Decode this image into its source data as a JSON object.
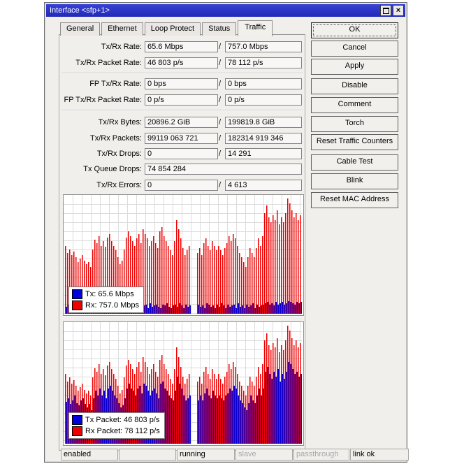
{
  "window": {
    "title": "Interface <sfp+1>"
  },
  "icons": {
    "maximize": "square-outline",
    "close": "x-mark",
    "close_glyph": "×"
  },
  "ui": {
    "slash": "/"
  },
  "tabs": [
    {
      "label": "General",
      "active": false
    },
    {
      "label": "Ethernet",
      "active": false
    },
    {
      "label": "Loop Protect",
      "active": false
    },
    {
      "label": "Status",
      "active": false
    },
    {
      "label": "Traffic",
      "active": true
    }
  ],
  "fields": [
    {
      "label": "Tx/Rx Rate:",
      "tx": "65.6 Mbps",
      "rx": "757.0 Mbps"
    },
    {
      "label": "Tx/Rx Packet Rate:",
      "tx": "46 803 p/s",
      "rx": "78 112 p/s"
    },
    {
      "label": "FP Tx/Rx Rate:",
      "tx": "0 bps",
      "rx": "0 bps"
    },
    {
      "label": "FP Tx/Rx Packet Rate:",
      "tx": "0 p/s",
      "rx": "0 p/s"
    },
    {
      "label": "Tx/Rx Bytes:",
      "tx": "20896.2 GiB",
      "rx": "199819.8 GiB"
    },
    {
      "label": "Tx/Rx Packets:",
      "tx": "99119 063 721",
      "rx": "182314 919 346"
    },
    {
      "label": "Tx/Rx Drops:",
      "tx": "0",
      "rx": "14 291"
    },
    {
      "label": "Tx Queue Drops:",
      "tx": "74 854 284",
      "rx": null
    },
    {
      "label": "Tx/Rx Errors:",
      "tx": "0",
      "rx": "4 613"
    }
  ],
  "buttons": [
    {
      "id": "ok",
      "label": "OK"
    },
    {
      "id": "cancel",
      "label": "Cancel"
    },
    {
      "id": "apply",
      "label": "Apply"
    },
    {
      "id": "disable",
      "label": "Disable"
    },
    {
      "id": "comment",
      "label": "Comment"
    },
    {
      "id": "torch",
      "label": "Torch"
    },
    {
      "id": "reset-traffic-counters",
      "label": "Reset Traffic Counters"
    },
    {
      "id": "cable-test",
      "label": "Cable Test"
    },
    {
      "id": "blink",
      "label": "Blink"
    },
    {
      "id": "reset-mac-address",
      "label": "Reset MAC Address"
    }
  ],
  "statusbar": [
    {
      "text": "enabled",
      "muted": false
    },
    {
      "text": "",
      "muted": false
    },
    {
      "text": "running",
      "muted": false
    },
    {
      "text": "slave",
      "muted": true
    },
    {
      "text": "passthrough",
      "muted": true
    },
    {
      "text": "link ok",
      "muted": false
    }
  ],
  "colors": {
    "tx_blue": "#0000dd",
    "rx_red": "#ee0000",
    "grid": "#dcdcdc",
    "titlebar_blue": "#2b34c8"
  },
  "chart_data": [
    {
      "type": "bar",
      "title": "Traffic rate graph (Tx/Rx Mbps)",
      "ylabel": "",
      "xlabel": "",
      "grid": true,
      "legend_position": "bottom-left",
      "note": "values are bar heights in percent of plot height; null = data gap",
      "legend": [
        {
          "series": "Tx",
          "color": "#0000dd",
          "current": "65.6 Mbps",
          "display": "Tx:  65.6 Mbps"
        },
        {
          "series": "Rx",
          "color": "#ee0000",
          "current": "757.0 Mbps",
          "display": "Rx:  757.0 Mbps"
        }
      ],
      "series": [
        {
          "name": "Rx",
          "color": "#ee0000",
          "values": [
            58,
            52,
            55,
            50,
            53,
            48,
            44,
            47,
            50,
            45,
            42,
            44,
            40,
            55,
            63,
            60,
            66,
            58,
            62,
            57,
            65,
            68,
            62,
            58,
            54,
            48,
            42,
            45,
            55,
            65,
            70,
            66,
            62,
            58,
            64,
            68,
            60,
            72,
            68,
            64,
            58,
            62,
            66,
            60,
            56,
            70,
            74,
            66,
            62,
            58,
            54,
            50,
            62,
            80,
            72,
            64,
            56,
            50,
            54,
            58,
            null,
            null,
            null,
            52,
            56,
            50,
            60,
            64,
            58,
            54,
            62,
            58,
            54,
            58,
            54,
            50,
            56,
            60,
            66,
            62,
            68,
            64,
            58,
            52,
            48,
            44,
            40,
            48,
            56,
            52,
            48,
            56,
            64,
            58,
            66,
            86,
            92,
            82,
            78,
            84,
            80,
            88,
            76,
            82,
            78,
            86,
            98,
            94,
            88,
            82,
            86,
            80,
            84
          ]
        },
        {
          "name": "Tx",
          "color": "#0000dd",
          "values": [
            6,
            8,
            5,
            9,
            7,
            6,
            8,
            7,
            5,
            8,
            6,
            7,
            9,
            6,
            8,
            5,
            7,
            8,
            6,
            9,
            7,
            5,
            8,
            6,
            7,
            9,
            6,
            8,
            5,
            7,
            6,
            8,
            7,
            9,
            5,
            8,
            6,
            7,
            8,
            5,
            9,
            6,
            7,
            8,
            6,
            5,
            8,
            7,
            9,
            6,
            5,
            7,
            8,
            6,
            9,
            7,
            5,
            8,
            6,
            7,
            null,
            null,
            null,
            8,
            6,
            7,
            5,
            9,
            8,
            6,
            7,
            5,
            8,
            6,
            9,
            7,
            5,
            8,
            6,
            7,
            8,
            5,
            9,
            6,
            7,
            5,
            8,
            6,
            7,
            9,
            5,
            8,
            6,
            7,
            8,
            9,
            10,
            8,
            9,
            7,
            10,
            8,
            9,
            10,
            8,
            9,
            11,
            10,
            9,
            8,
            10,
            9,
            10
          ]
        }
      ]
    },
    {
      "type": "bar",
      "title": "Packet rate graph (Tx/Rx p/s)",
      "ylabel": "",
      "xlabel": "",
      "grid": true,
      "legend_position": "bottom-left",
      "note": "values are bar heights in percent of plot height; null = data gap",
      "legend": [
        {
          "series": "Tx Packet",
          "color": "#0000dd",
          "current": "46 803 p/s",
          "display": "Tx Packet:  46 803 p/s"
        },
        {
          "series": "Rx Packet",
          "color": "#ee0000",
          "current": "78 112 p/s",
          "display": "Rx Packet:  78 112 p/s"
        }
      ],
      "series": [
        {
          "name": "Rx Packet",
          "color": "#ee0000",
          "values": [
            58,
            52,
            55,
            50,
            53,
            48,
            44,
            47,
            50,
            45,
            42,
            44,
            40,
            55,
            63,
            60,
            66,
            58,
            62,
            57,
            65,
            68,
            62,
            58,
            54,
            48,
            42,
            45,
            55,
            65,
            70,
            66,
            62,
            58,
            64,
            68,
            60,
            72,
            68,
            64,
            58,
            62,
            66,
            60,
            56,
            70,
            74,
            66,
            62,
            58,
            54,
            50,
            62,
            80,
            72,
            64,
            56,
            50,
            54,
            58,
            null,
            null,
            null,
            52,
            56,
            50,
            60,
            64,
            58,
            54,
            62,
            58,
            54,
            58,
            54,
            50,
            56,
            60,
            66,
            62,
            68,
            64,
            58,
            52,
            48,
            44,
            40,
            48,
            56,
            52,
            48,
            56,
            64,
            58,
            66,
            86,
            92,
            82,
            78,
            84,
            80,
            88,
            76,
            82,
            78,
            86,
            98,
            94,
            88,
            82,
            86,
            80,
            84
          ]
        },
        {
          "name": "Tx Packet",
          "color": "#0000dd",
          "values": [
            35,
            38,
            33,
            36,
            40,
            34,
            32,
            36,
            38,
            33,
            30,
            33,
            28,
            38,
            44,
            40,
            46,
            40,
            44,
            38,
            46,
            48,
            44,
            40,
            38,
            34,
            30,
            32,
            38,
            46,
            50,
            46,
            44,
            40,
            46,
            48,
            42,
            50,
            48,
            44,
            40,
            44,
            46,
            42,
            38,
            50,
            52,
            46,
            44,
            40,
            38,
            36,
            44,
            56,
            50,
            46,
            40,
            36,
            38,
            40,
            null,
            null,
            null,
            36,
            40,
            36,
            42,
            46,
            40,
            38,
            44,
            40,
            38,
            40,
            38,
            36,
            40,
            42,
            46,
            44,
            48,
            46,
            40,
            36,
            34,
            30,
            28,
            34,
            40,
            36,
            34,
            40,
            46,
            40,
            46,
            60,
            64,
            58,
            54,
            60,
            56,
            62,
            52,
            58,
            54,
            60,
            68,
            66,
            62,
            58,
            60,
            56,
            58
          ]
        }
      ]
    }
  ]
}
